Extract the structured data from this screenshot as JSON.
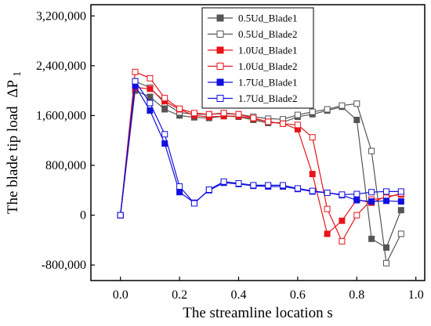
{
  "chart_data": {
    "type": "line",
    "xlabel": "The streamline location s",
    "ylabel": "The blade tip load",
    "ylabel_symbol": "ΔP",
    "ylabel_subscript": "1",
    "xlim": [
      -0.1,
      1.03
    ],
    "ylim": [
      -1050000,
      3380000
    ],
    "xticks": [
      0.0,
      0.2,
      0.4,
      0.6,
      0.8,
      1.0
    ],
    "xtick_labels": [
      "0.0",
      "0.2",
      "0.4",
      "0.6",
      "0.8",
      "1.0"
    ],
    "yticks": [
      -800000,
      0,
      800000,
      1600000,
      2400000,
      3200000
    ],
    "ytick_labels": [
      "-800,000",
      "0",
      "800,000",
      "1,600,000",
      "2,400,000",
      "3,200,000"
    ],
    "grid": false,
    "legend_position": "top-right",
    "series": [
      {
        "name": "0.5Ud_Blade1",
        "color": "#555555",
        "marker": "filled-square",
        "x": [
          0.0,
          0.05,
          0.1,
          0.15,
          0.2,
          0.25,
          0.3,
          0.35,
          0.4,
          0.45,
          0.5,
          0.55,
          0.6,
          0.65,
          0.7,
          0.75,
          0.8,
          0.85,
          0.9,
          0.95
        ],
        "y": [
          0,
          2000000,
          1900000,
          1700000,
          1600000,
          1570000,
          1560000,
          1590000,
          1580000,
          1530000,
          1480000,
          1490000,
          1580000,
          1620000,
          1680000,
          1740000,
          1530000,
          -380000,
          -520000,
          80000
        ]
      },
      {
        "name": "0.5Ud_Blade2",
        "color": "#555555",
        "marker": "open-square",
        "x": [
          0.0,
          0.05,
          0.1,
          0.15,
          0.2,
          0.25,
          0.3,
          0.35,
          0.4,
          0.45,
          0.5,
          0.55,
          0.6,
          0.65,
          0.7,
          0.75,
          0.8,
          0.85,
          0.9,
          0.95
        ],
        "y": [
          0,
          2150000,
          2050000,
          1800000,
          1650000,
          1620000,
          1620000,
          1630000,
          1620000,
          1580000,
          1550000,
          1540000,
          1610000,
          1660000,
          1700000,
          1760000,
          1790000,
          1030000,
          -770000,
          -300000
        ]
      },
      {
        "name": "1.0Ud_Blade1",
        "color": "#e8141a",
        "marker": "filled-square",
        "x": [
          0.0,
          0.05,
          0.1,
          0.15,
          0.2,
          0.25,
          0.3,
          0.35,
          0.4,
          0.45,
          0.5,
          0.55,
          0.6,
          0.65,
          0.7,
          0.75,
          0.8,
          0.85,
          0.9,
          0.95
        ],
        "y": [
          0,
          2050000,
          2030000,
          1830000,
          1700000,
          1600000,
          1580000,
          1590000,
          1590000,
          1550000,
          1500000,
          1470000,
          1380000,
          660000,
          -300000,
          -90000,
          250000,
          200000,
          300000,
          330000
        ]
      },
      {
        "name": "1.0Ud_Blade2",
        "color": "#e8141a",
        "marker": "open-square",
        "x": [
          0.0,
          0.05,
          0.1,
          0.15,
          0.2,
          0.25,
          0.3,
          0.35,
          0.4,
          0.45,
          0.5,
          0.55,
          0.6,
          0.65,
          0.7,
          0.75,
          0.8,
          0.85,
          0.9,
          0.95
        ],
        "y": [
          0,
          2300000,
          2200000,
          1880000,
          1710000,
          1640000,
          1620000,
          1640000,
          1620000,
          1560000,
          1500000,
          1470000,
          1450000,
          1250000,
          100000,
          -420000,
          0,
          250000,
          280000,
          350000
        ]
      },
      {
        "name": "1.7Ud_Blade1",
        "color": "#1010e0",
        "marker": "filled-square",
        "x": [
          0.0,
          0.05,
          0.1,
          0.15,
          0.2,
          0.25,
          0.3,
          0.35,
          0.4,
          0.45,
          0.5,
          0.55,
          0.6,
          0.65,
          0.7,
          0.75,
          0.8,
          0.85,
          0.9,
          0.95
        ],
        "y": [
          0,
          2080000,
          1680000,
          1150000,
          370000,
          200000,
          400000,
          520000,
          500000,
          470000,
          460000,
          460000,
          420000,
          380000,
          360000,
          320000,
          240000,
          220000,
          230000,
          220000
        ]
      },
      {
        "name": "1.7Ud_Blade2",
        "color": "#1010e0",
        "marker": "open-square",
        "x": [
          0.0,
          0.05,
          0.1,
          0.15,
          0.2,
          0.25,
          0.3,
          0.35,
          0.4,
          0.45,
          0.5,
          0.55,
          0.6,
          0.65,
          0.7,
          0.75,
          0.8,
          0.85,
          0.9,
          0.95
        ],
        "y": [
          0,
          2150000,
          1800000,
          1300000,
          460000,
          190000,
          410000,
          540000,
          510000,
          480000,
          480000,
          480000,
          430000,
          390000,
          360000,
          330000,
          340000,
          370000,
          380000,
          380000
        ]
      }
    ]
  }
}
